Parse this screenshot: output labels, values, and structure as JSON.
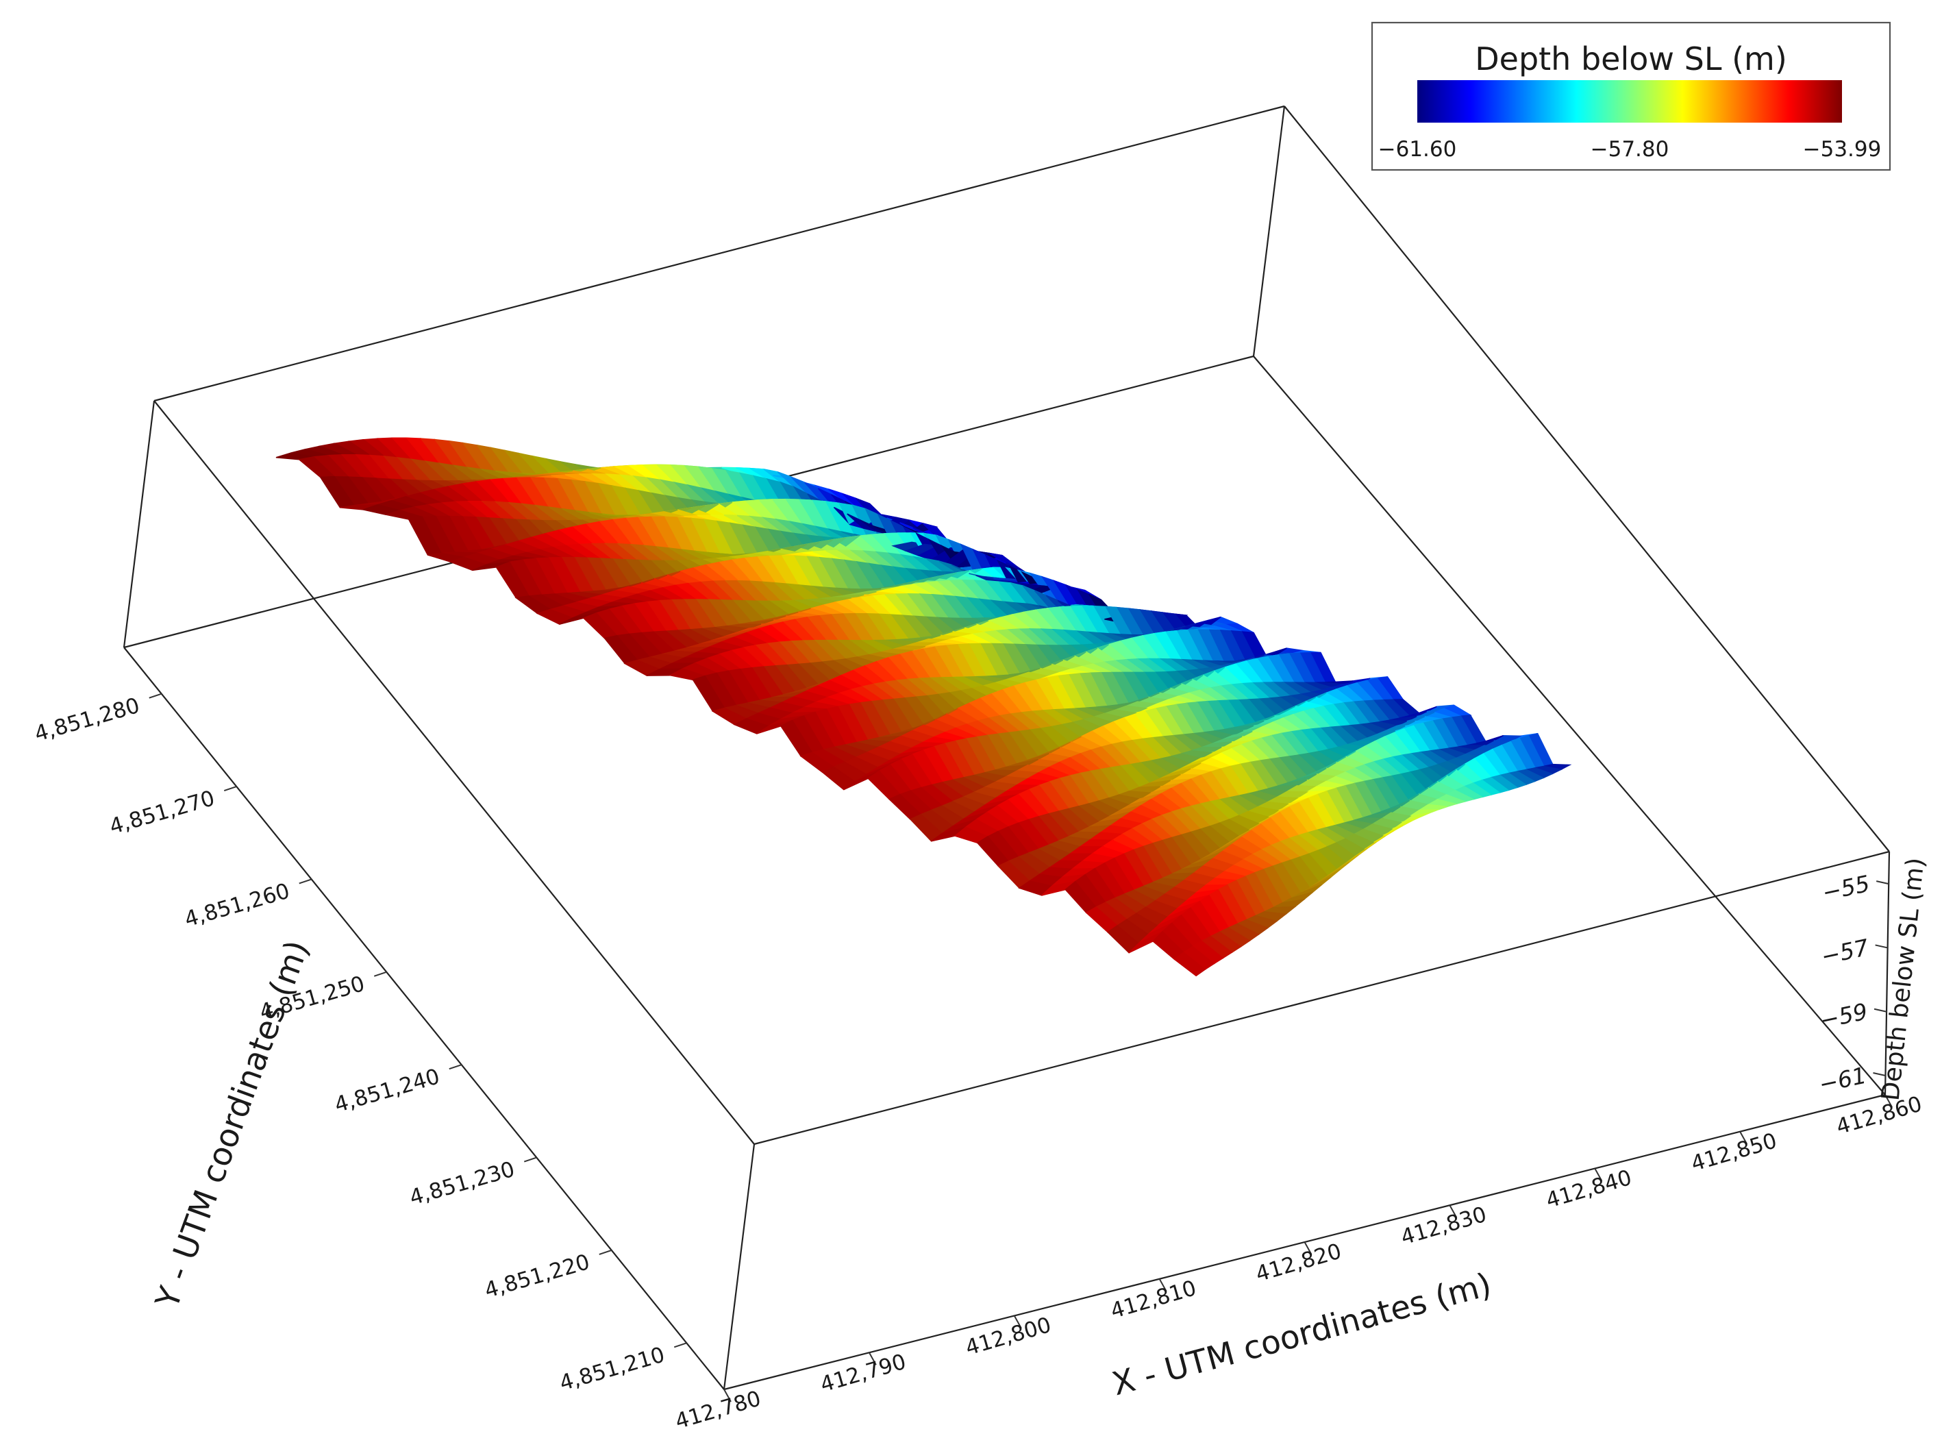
{
  "chart_data": {
    "type": "surface3d",
    "x_axis": {
      "title": "X - UTM coordinates (m)",
      "range": [
        412780,
        412860
      ],
      "ticks": [
        412780,
        412790,
        412800,
        412810,
        412820,
        412830,
        412840,
        412850,
        412860
      ],
      "tick_labels": [
        "412,780",
        "412,790",
        "412,800",
        "412,810",
        "412,820",
        "412,830",
        "412,840",
        "412,850",
        "412,860"
      ]
    },
    "y_axis": {
      "title": "Y - UTM coordinates (m)",
      "range": [
        4851205,
        4851285
      ],
      "ticks": [
        4851210,
        4851220,
        4851230,
        4851240,
        4851250,
        4851260,
        4851270,
        4851280
      ],
      "tick_labels": [
        "4,851,210",
        "4,851,220",
        "4,851,230",
        "4,851,240",
        "4,851,250",
        "4,851,260",
        "4,851,270",
        "4,851,280"
      ]
    },
    "z_axis": {
      "title": "Depth below SL (m)",
      "range": [
        -61.6,
        -53.99
      ],
      "ticks": [
        -61,
        -59,
        -57,
        -55
      ],
      "tick_labels": [
        "−61",
        "−59",
        "−57",
        "−55"
      ]
    },
    "colorbar": {
      "title": "Depth below SL (m)",
      "min": -61.6,
      "max": -53.99,
      "tick_labels": [
        "−61.60",
        "−57.80",
        "−53.99"
      ],
      "colormap": "jet",
      "placement": "top-right"
    },
    "surface": {
      "description_values": {
        "shallowest_region": "north-west corner",
        "deepest_region": "east corner",
        "depth_range": [
          -61.6,
          -53.99
        ]
      },
      "footprint_corners_xy": [
        [
          412785,
          4851278
        ],
        [
          412830,
          4851280
        ],
        [
          412856,
          4851238
        ],
        [
          412815,
          4851212
        ]
      ]
    }
  }
}
